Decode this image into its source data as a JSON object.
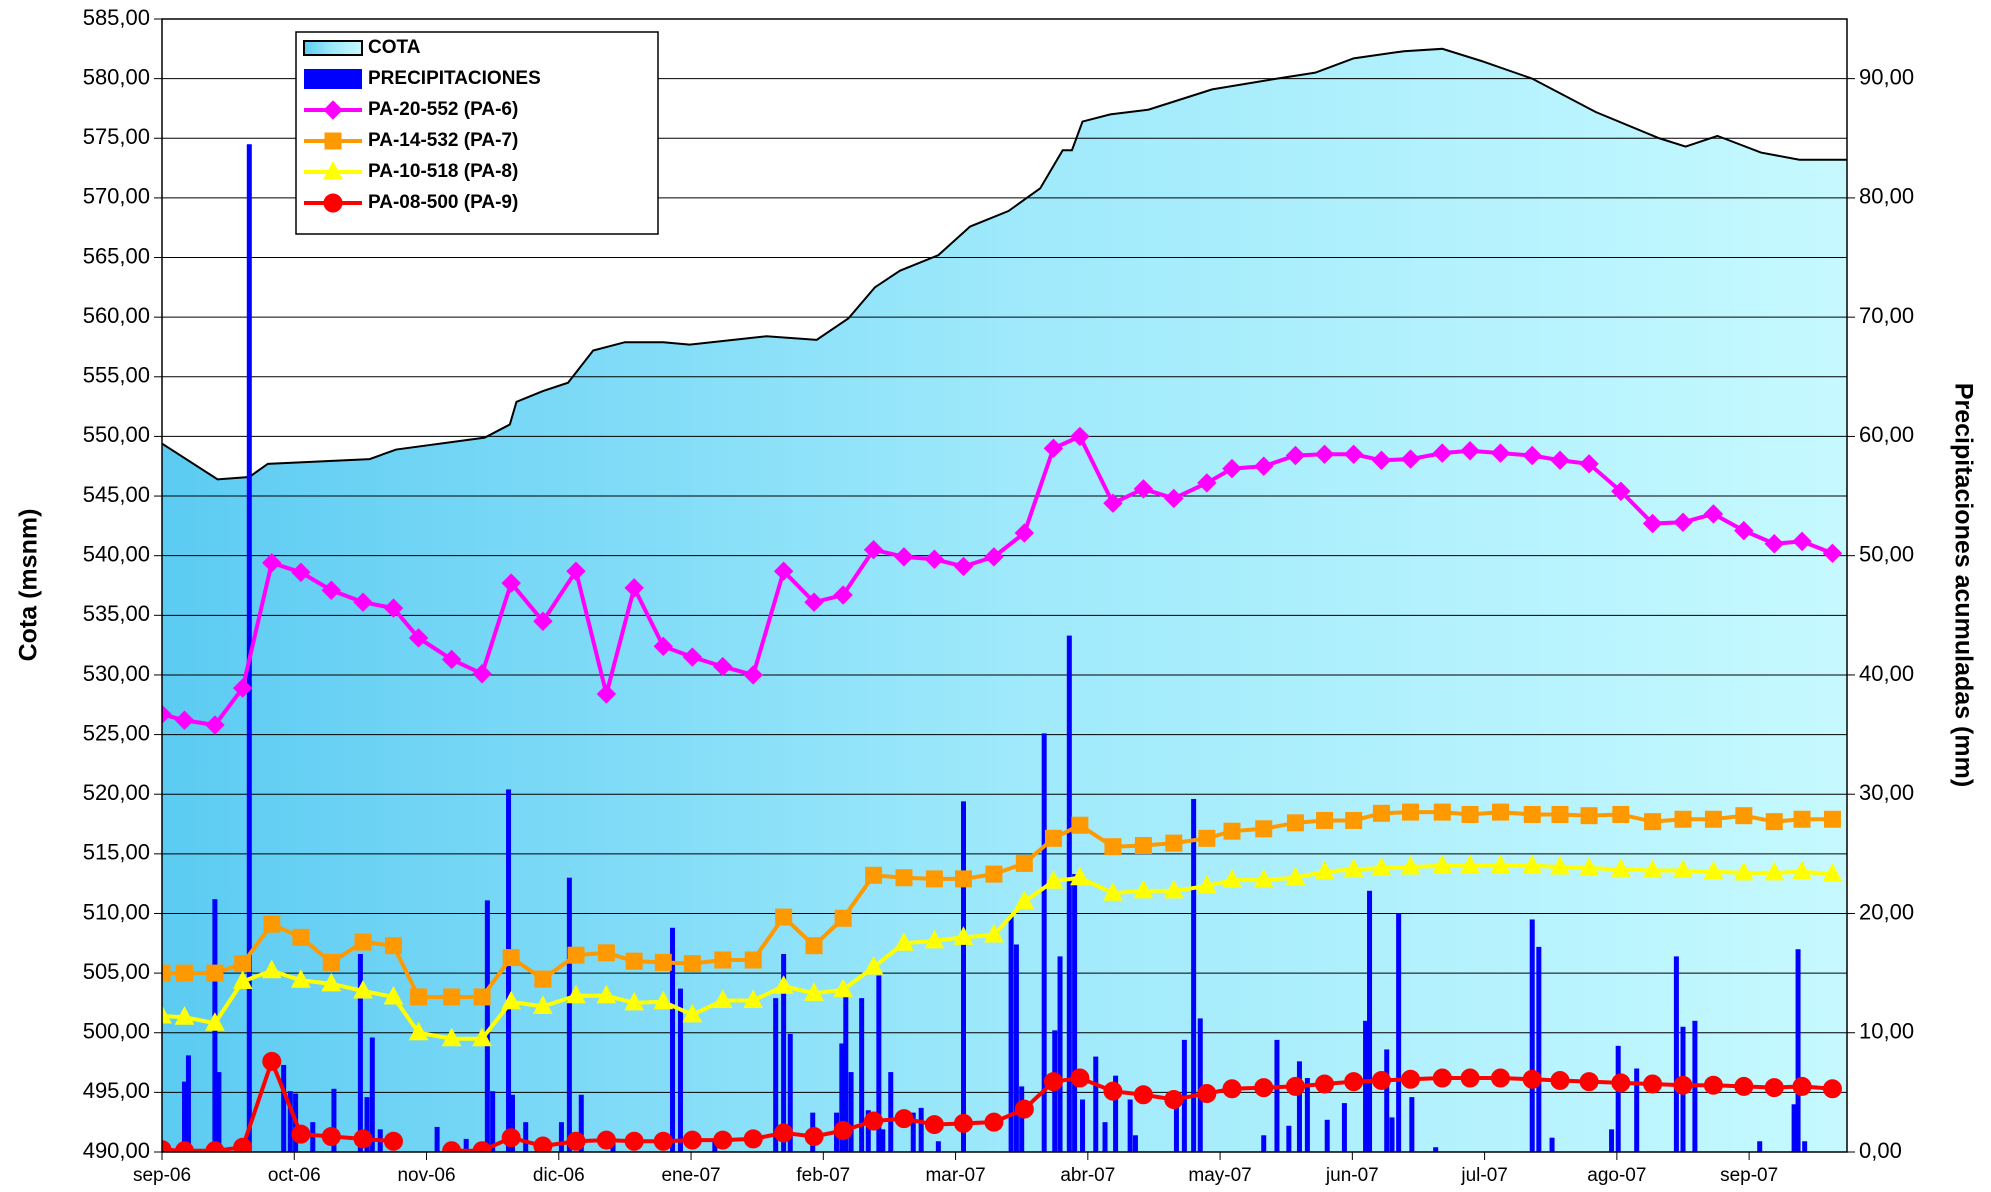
{
  "chart_data": {
    "type": "line",
    "ylabel": "Cota (msnm)",
    "y2label": "Precipitaciones acumuladas (mm)",
    "xlim": [
      0,
      12.74
    ],
    "xticks": [
      {
        "value": 0,
        "label": "sep-06"
      },
      {
        "value": 1,
        "label": "oct-06"
      },
      {
        "value": 2,
        "label": "nov-06"
      },
      {
        "value": 3,
        "label": "dic-06"
      },
      {
        "value": 4,
        "label": "ene-07"
      },
      {
        "value": 5,
        "label": "feb-07"
      },
      {
        "value": 6,
        "label": "mar-07"
      },
      {
        "value": 7,
        "label": "abr-07"
      },
      {
        "value": 8,
        "label": "may-07"
      },
      {
        "value": 9,
        "label": "jun-07"
      },
      {
        "value": 10,
        "label": "jul-07"
      },
      {
        "value": 11,
        "label": "ago-07"
      },
      {
        "value": 12,
        "label": "sep-07"
      }
    ],
    "ylim": [
      490,
      585
    ],
    "yticks": [
      {
        "value": 490,
        "label": "490,00"
      },
      {
        "value": 495,
        "label": "495,00"
      },
      {
        "value": 500,
        "label": "500,00"
      },
      {
        "value": 505,
        "label": "505,00"
      },
      {
        "value": 510,
        "label": "510,00"
      },
      {
        "value": 515,
        "label": "515,00"
      },
      {
        "value": 520,
        "label": "520,00"
      },
      {
        "value": 525,
        "label": "525,00"
      },
      {
        "value": 530,
        "label": "530,00"
      },
      {
        "value": 535,
        "label": "535,00"
      },
      {
        "value": 540,
        "label": "540,00"
      },
      {
        "value": 545,
        "label": "545,00"
      },
      {
        "value": 550,
        "label": "550,00"
      },
      {
        "value": 555,
        "label": "555,00"
      },
      {
        "value": 560,
        "label": "560,00"
      },
      {
        "value": 565,
        "label": "565,00"
      },
      {
        "value": 570,
        "label": "570,00"
      },
      {
        "value": 575,
        "label": "575,00"
      },
      {
        "value": 580,
        "label": "580,00"
      },
      {
        "value": 585,
        "label": "585,00"
      }
    ],
    "y2lim": [
      0,
      95
    ],
    "y2ticks": [
      {
        "value": 0,
        "label": "0,00"
      },
      {
        "value": 10,
        "label": "10,00"
      },
      {
        "value": 20,
        "label": "20,00"
      },
      {
        "value": 30,
        "label": "30,00"
      },
      {
        "value": 40,
        "label": "40,00"
      },
      {
        "value": 50,
        "label": "50,00"
      },
      {
        "value": 60,
        "label": "60,00"
      },
      {
        "value": 70,
        "label": "70,00"
      },
      {
        "value": 80,
        "label": "80,00"
      },
      {
        "value": 90,
        "label": "90,00"
      }
    ],
    "grid": true,
    "legend": "upper left",
    "x": [
      0,
      0.17,
      0.4,
      0.61,
      0.83,
      1.05,
      1.28,
      1.52,
      1.75,
      1.94,
      2.19,
      2.42,
      2.64,
      2.88,
      3.13,
      3.36,
      3.57,
      3.79,
      4.01,
      4.24,
      4.47,
      4.7,
      4.93,
      5.15,
      5.38,
      5.61,
      5.84,
      6.06,
      6.29,
      6.52,
      6.74,
      6.94,
      7.19,
      7.42,
      7.65,
      7.9,
      8.09,
      8.33,
      8.57,
      8.79,
      9.01,
      9.22,
      9.44,
      9.68,
      9.89,
      10.12,
      10.36,
      10.57,
      10.79,
      11.03,
      11.27,
      11.5,
      11.73,
      11.96,
      12.19,
      12.4,
      12.63
    ],
    "series": [
      {
        "name": "COTA",
        "type": "area",
        "color": "#000000",
        "x": [
          0,
          0.42,
          0.66,
          0.8,
          1.57,
          1.77,
          2.44,
          2.63,
          2.68,
          2.88,
          3.07,
          3.26,
          3.5,
          3.79,
          3.99,
          4.57,
          4.95,
          5.19,
          5.39,
          5.58,
          5.87,
          6.11,
          6.4,
          6.64,
          6.81,
          6.88,
          6.96,
          7.17,
          7.46,
          7.94,
          8.43,
          8.72,
          9.01,
          9.39,
          9.68,
          9.97,
          10.36,
          10.84,
          11.32,
          11.52,
          11.76,
          12.09,
          12.38,
          12.74
        ],
        "values": [
          549.4,
          546.4,
          546.6,
          547.7,
          548.1,
          548.9,
          549.9,
          551.0,
          552.9,
          553.8,
          554.5,
          557.2,
          557.9,
          557.9,
          557.7,
          558.4,
          558.1,
          559.9,
          562.5,
          563.9,
          565.2,
          567.6,
          568.9,
          570.8,
          574.0,
          574.0,
          576.4,
          577.0,
          577.4,
          579.1,
          580.0,
          580.5,
          581.7,
          582.3,
          582.5,
          581.5,
          580.0,
          577.2,
          575.0,
          574.3,
          575.2,
          573.8,
          573.2,
          573.2
        ]
      },
      {
        "name": "PRECIPITACIONES",
        "type": "bar",
        "axis": "y2",
        "color": "#0000ff",
        "x": [
          0.17,
          0.2,
          0.4,
          0.43,
          0.66,
          0.92,
          0.97,
          1.01,
          1.14,
          1.3,
          1.5,
          1.55,
          1.59,
          1.65,
          2.08,
          2.3,
          2.46,
          2.5,
          2.62,
          2.65,
          2.75,
          3.02,
          3.08,
          3.17,
          3.41,
          3.86,
          3.92,
          4.18,
          4.64,
          4.7,
          4.75,
          4.92,
          5.1,
          5.14,
          5.17,
          5.21,
          5.29,
          5.34,
          5.42,
          5.45,
          5.51,
          5.68,
          5.74,
          5.87,
          6.06,
          6.42,
          6.46,
          6.5,
          6.67,
          6.75,
          6.79,
          6.86,
          6.9,
          6.96,
          7.06,
          7.13,
          7.21,
          7.32,
          7.36,
          7.67,
          7.73,
          7.8,
          7.85,
          8.33,
          8.43,
          8.52,
          8.6,
          8.66,
          8.81,
          8.94,
          9.1,
          9.13,
          9.26,
          9.3,
          9.35,
          9.45,
          9.63,
          10.36,
          10.41,
          10.51,
          10.96,
          11.01,
          11.15,
          11.45,
          11.5,
          11.59,
          12.08,
          12.34,
          12.37,
          12.42
        ],
        "values": [
          5.9,
          8.1,
          21.2,
          6.7,
          84.5,
          7.3,
          5.1,
          4.9,
          2.5,
          5.3,
          16.6,
          4.6,
          9.6,
          1.9,
          2.1,
          1.1,
          21.1,
          5.1,
          30.4,
          4.8,
          2.5,
          2.5,
          23.0,
          4.8,
          0.9,
          18.8,
          13.7,
          0.9,
          12.9,
          16.6,
          9.9,
          3.3,
          3.3,
          9.1,
          13.2,
          6.7,
          12.9,
          3.5,
          14.8,
          1.9,
          6.7,
          3.3,
          3.7,
          0.9,
          29.4,
          19.8,
          17.4,
          5.5,
          35.1,
          10.2,
          16.4,
          43.3,
          23.3,
          4.4,
          8.0,
          2.5,
          6.4,
          4.4,
          1.4,
          4.4,
          9.4,
          29.6,
          11.2,
          1.4,
          9.4,
          2.2,
          7.6,
          6.2,
          2.7,
          4.1,
          11.0,
          21.9,
          8.6,
          2.9,
          20.0,
          4.6,
          0.4,
          19.5,
          17.2,
          1.2,
          1.9,
          8.9,
          7.0,
          16.4,
          10.5,
          11.0,
          0.9,
          4.0,
          17.0,
          0.9
        ]
      },
      {
        "name": "PA-20-552 (PA-6)",
        "type": "line",
        "marker": "diamond",
        "color": "#ff00ff",
        "values": [
          526.7,
          526.2,
          525.8,
          528.9,
          539.4,
          538.6,
          537.1,
          536.1,
          535.6,
          533.1,
          531.3,
          530.1,
          537.7,
          534.5,
          538.7,
          528.4,
          537.3,
          532.4,
          531.5,
          530.7,
          530.0,
          538.7,
          536.1,
          536.7,
          540.5,
          539.9,
          539.7,
          539.1,
          539.9,
          541.9,
          549.0,
          550.0,
          544.4,
          545.6,
          544.8,
          546.1,
          547.3,
          547.5,
          548.4,
          548.5,
          548.5,
          548.0,
          548.1,
          548.6,
          548.8,
          548.6,
          548.4,
          548.0,
          547.7,
          545.4,
          542.7,
          542.8,
          543.5,
          542.1,
          541.0,
          541.2,
          540.2
        ]
      },
      {
        "name": "PA-14-532 (PA-7)",
        "type": "line",
        "marker": "square",
        "color": "#ff9900",
        "values": [
          505.0,
          505.0,
          505.0,
          505.8,
          509.1,
          508.0,
          505.9,
          507.6,
          507.3,
          503.0,
          503.0,
          503.0,
          506.3,
          504.5,
          506.5,
          506.7,
          506.0,
          505.9,
          505.8,
          506.1,
          506.1,
          509.7,
          507.3,
          509.6,
          513.2,
          513.0,
          512.9,
          512.9,
          513.3,
          514.2,
          516.3,
          517.4,
          515.6,
          515.7,
          515.9,
          516.3,
          516.9,
          517.1,
          517.6,
          517.8,
          517.8,
          518.4,
          518.5,
          518.5,
          518.3,
          518.5,
          518.3,
          518.3,
          518.2,
          518.3,
          517.7,
          517.9,
          517.9,
          518.2,
          517.7,
          517.9,
          517.9
        ]
      },
      {
        "name": "PA-10-518 (PA-8)",
        "type": "line",
        "marker": "triangle",
        "color": "#ffff00",
        "values": [
          501.4,
          501.3,
          500.8,
          504.3,
          505.2,
          504.4,
          504.1,
          503.5,
          503.0,
          500.0,
          499.5,
          499.5,
          502.6,
          502.2,
          503.1,
          503.1,
          502.5,
          502.6,
          501.5,
          502.7,
          502.7,
          503.9,
          503.3,
          503.6,
          505.5,
          507.5,
          507.7,
          508.0,
          508.2,
          511.0,
          512.7,
          513.0,
          511.7,
          511.9,
          511.9,
          512.3,
          512.8,
          512.8,
          513.0,
          513.5,
          513.7,
          513.8,
          513.9,
          514.0,
          514.0,
          514.0,
          514.0,
          513.9,
          513.8,
          513.7,
          513.6,
          513.6,
          513.5,
          513.4,
          513.4,
          513.5,
          513.3
        ]
      },
      {
        "name": "PA-08-500 (PA-9)",
        "type": "line",
        "marker": "circle",
        "color": "#ff0000",
        "values": [
          490.2,
          490.1,
          490.1,
          490.4,
          497.6,
          491.5,
          491.3,
          491.1,
          490.9,
          null,
          490.1,
          490.1,
          491.2,
          490.5,
          490.9,
          491.0,
          490.9,
          490.9,
          491.0,
          491.0,
          491.1,
          491.6,
          491.3,
          491.8,
          492.6,
          492.8,
          492.3,
          492.4,
          492.5,
          493.6,
          495.9,
          496.2,
          495.1,
          494.8,
          494.4,
          494.9,
          495.3,
          495.4,
          495.5,
          495.7,
          495.9,
          496.0,
          496.1,
          496.2,
          496.2,
          496.2,
          496.1,
          496.0,
          495.9,
          495.8,
          495.7,
          495.6,
          495.6,
          495.5,
          495.4,
          495.5,
          495.3
        ]
      }
    ]
  }
}
